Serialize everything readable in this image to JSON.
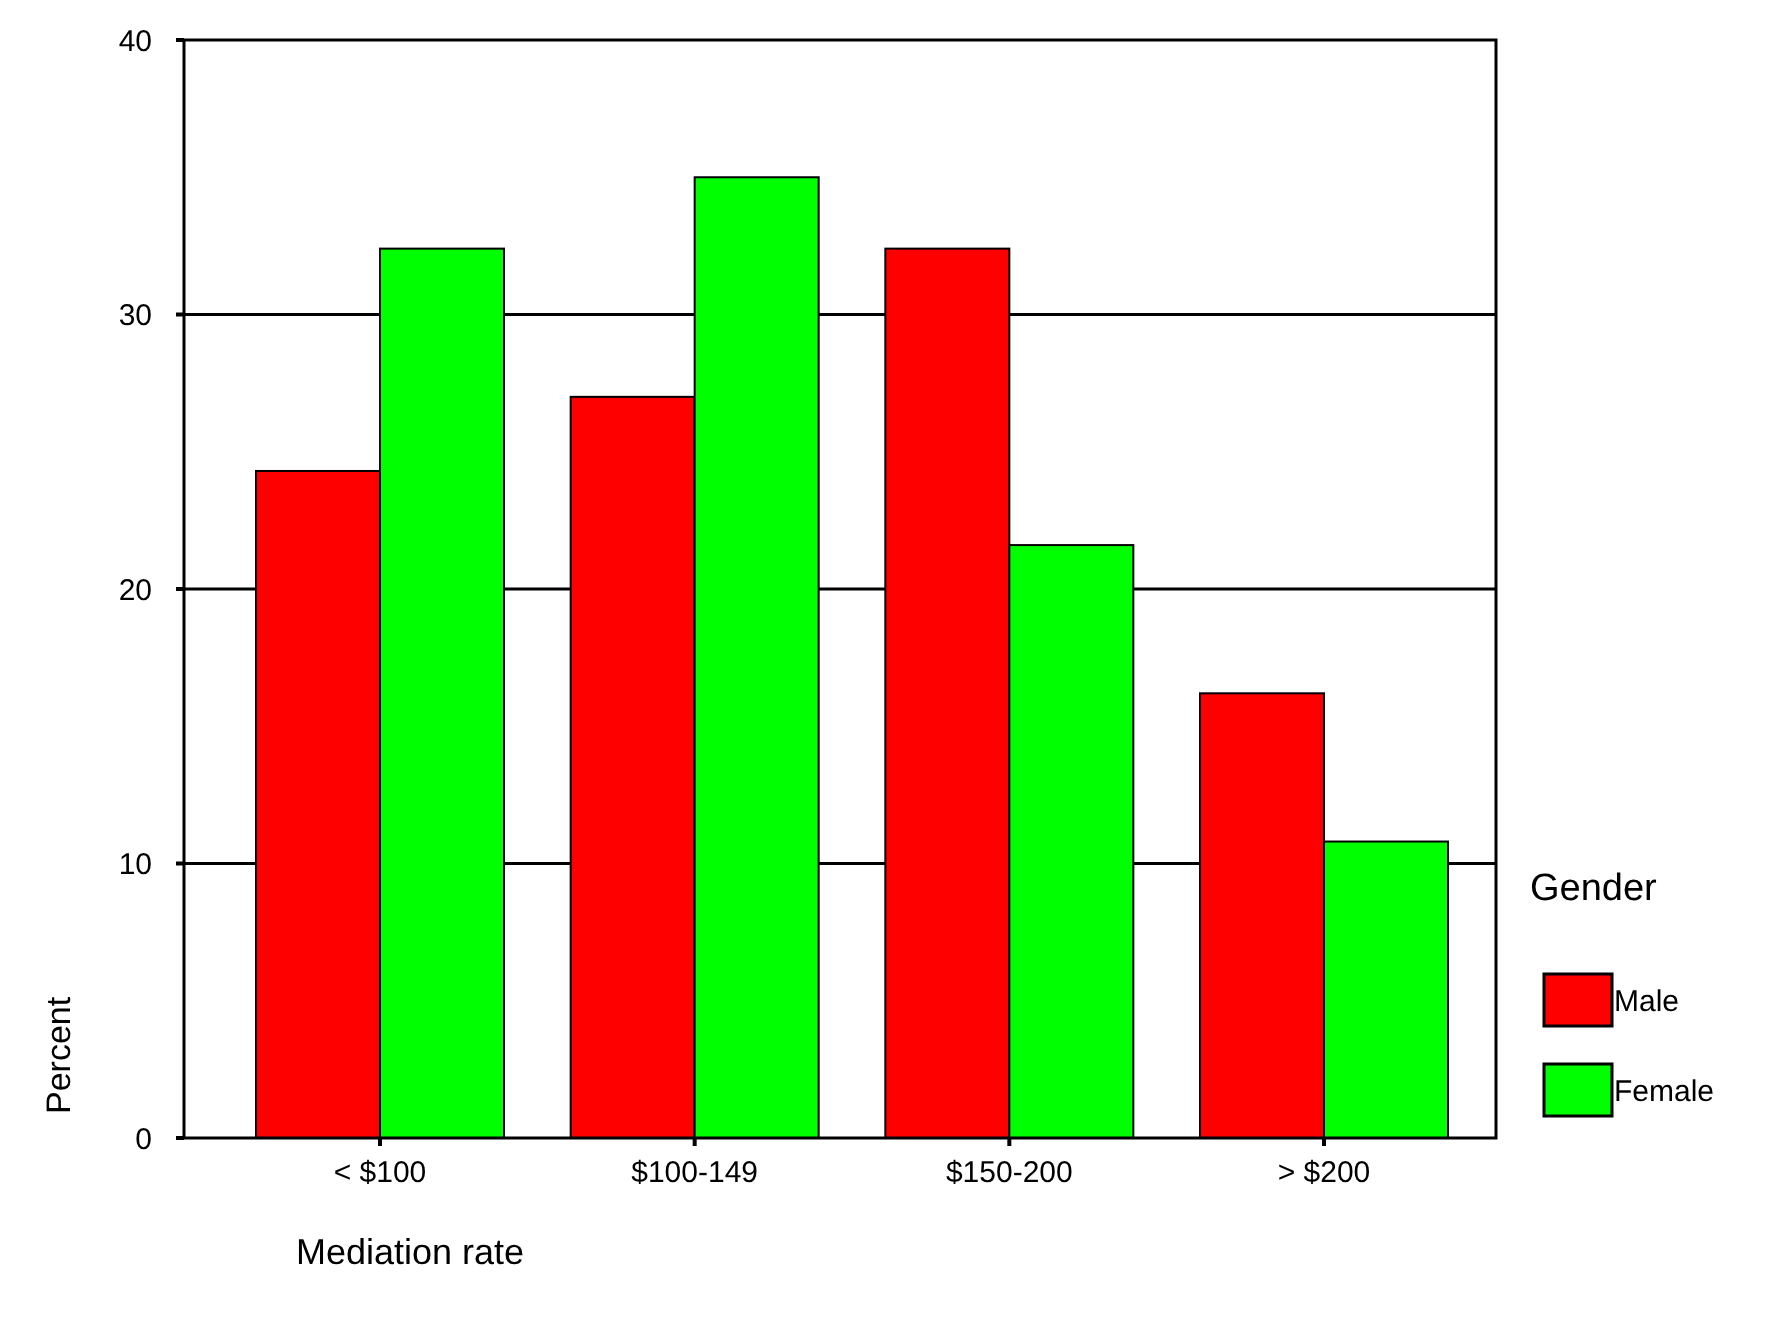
{
  "chart_data": {
    "type": "bar",
    "xlabel": "Mediation rate",
    "ylabel": "Percent",
    "legend_title": "Gender",
    "categories": [
      "< $100",
      "$100-149",
      "$150-200",
      "> $200"
    ],
    "series": [
      {
        "name": "Male",
        "color": "#ff0000",
        "values": [
          24.3,
          27.0,
          32.4,
          16.2
        ]
      },
      {
        "name": "Female",
        "color": "#00ff00",
        "values": [
          32.4,
          35.0,
          21.6,
          10.8
        ]
      }
    ],
    "ylim": [
      0,
      40
    ],
    "yticks": [
      0,
      10,
      20,
      30,
      40
    ],
    "grid": "y",
    "legend": "right"
  }
}
